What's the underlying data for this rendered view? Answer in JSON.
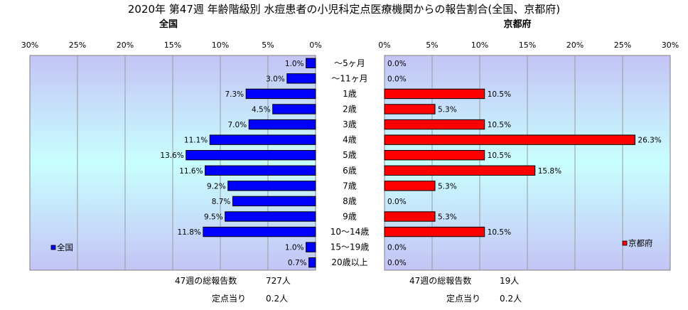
{
  "title": "2020年 第47週 年齢階級別 水痘患者の小児科定点医療機関からの報告割合(全国、京都府)",
  "categories": [
    "～5ヶ月",
    "～11ヶ月",
    "1歳",
    "2歳",
    "3歳",
    "4歳",
    "5歳",
    "6歳",
    "7歳",
    "8歳",
    "9歳",
    "10～14歳",
    "15～19歳",
    "20歳以上"
  ],
  "x_ticks": [
    "0%",
    "5%",
    "10%",
    "15%",
    "20%",
    "25%",
    "30%"
  ],
  "chart_data": [
    {
      "type": "bar",
      "orientation": "horizontal",
      "direction": "right-to-left",
      "title": "全国",
      "xlim": [
        0,
        30
      ],
      "series": [
        {
          "name": "全国",
          "color": "#0000ff",
          "values": [
            1.0,
            3.0,
            7.3,
            4.5,
            7.0,
            11.1,
            13.6,
            11.6,
            9.2,
            8.7,
            9.5,
            11.8,
            1.0,
            0.7
          ]
        }
      ],
      "data_labels": [
        "1.0%",
        "3.0%",
        "7.3%",
        "4.5%",
        "7.0%",
        "11.1%",
        "13.6%",
        "11.6%",
        "9.2%",
        "8.7%",
        "9.5%",
        "11.8%",
        "1.0%",
        "0.7%"
      ],
      "legend": "bottom-left",
      "grid": true
    },
    {
      "type": "bar",
      "orientation": "horizontal",
      "direction": "left-to-right",
      "title": "京都府",
      "xlim": [
        0,
        30
      ],
      "series": [
        {
          "name": "京都府",
          "color": "#ff0000",
          "values": [
            0.0,
            0.0,
            10.5,
            5.3,
            10.5,
            26.3,
            10.5,
            15.8,
            5.3,
            0.0,
            5.3,
            10.5,
            0.0,
            0.0
          ]
        }
      ],
      "data_labels": [
        "0.0%",
        "0.0%",
        "10.5%",
        "5.3%",
        "10.5%",
        "26.3%",
        "10.5%",
        "15.8%",
        "5.3%",
        "0.0%",
        "5.3%",
        "10.5%",
        "0.0%",
        "0.0%"
      ],
      "legend": "bottom-right",
      "grid": true
    }
  ],
  "footer": {
    "national": {
      "total_label": "47週の総報告数",
      "total_value": "727人",
      "per_label": "定点当り",
      "per_value": "0.2人"
    },
    "kyoto": {
      "total_label": "47週の総報告数",
      "total_value": "19人",
      "per_label": "定点当り",
      "per_value": "0.2人"
    }
  }
}
